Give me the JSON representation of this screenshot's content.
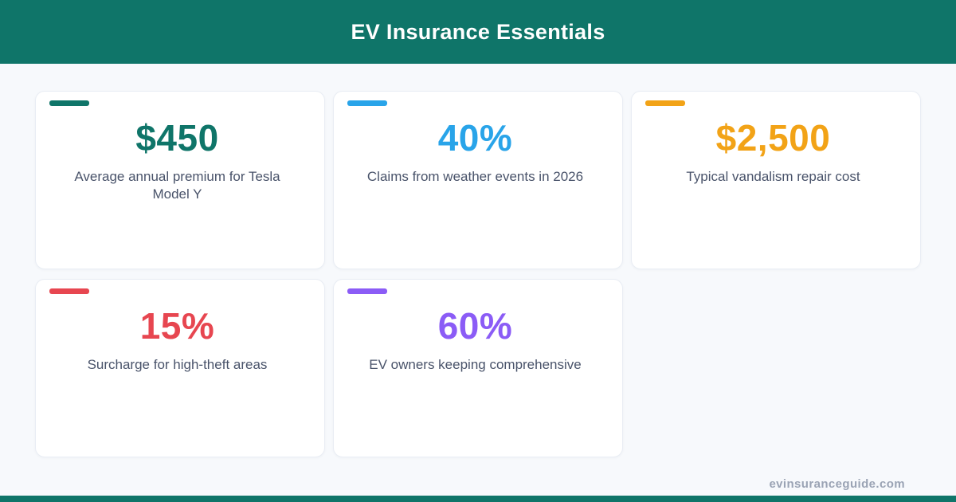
{
  "header": {
    "title": "EV Insurance Essentials"
  },
  "theme": {
    "header_bg": "#0f7569",
    "page_bg": "#f7f9fc",
    "label_color": "#49536a",
    "footer_color": "#9aa3b4"
  },
  "cards": [
    {
      "value": "$450",
      "label": "Average annual premium for Tesla Model Y",
      "color": "#0f7569"
    },
    {
      "value": "40%",
      "label": "Claims from weather events in 2026",
      "color": "#29a4e9"
    },
    {
      "value": "$2,500",
      "label": "Typical vandalism repair cost",
      "color": "#f2a317"
    },
    {
      "value": "15%",
      "label": "Surcharge for high-theft areas",
      "color": "#e74650"
    },
    {
      "value": "60%",
      "label": "EV owners keeping comprehensive",
      "color": "#8b5cf6"
    }
  ],
  "footer": {
    "website": "evinsuranceguide.com"
  },
  "chart_data": {
    "type": "table",
    "title": "EV Insurance Essentials",
    "categories": [
      "Average annual premium for Tesla Model Y",
      "Claims from weather events in 2026",
      "Typical vandalism repair cost",
      "Surcharge for high-theft areas",
      "EV owners keeping comprehensive"
    ],
    "values": [
      450,
      40,
      2500,
      15,
      60
    ],
    "display_values": [
      "$450",
      "40%",
      "$2,500",
      "15%",
      "60%"
    ],
    "units": [
      "USD",
      "%",
      "USD",
      "%",
      "%"
    ],
    "series_colors": [
      "#0f7569",
      "#29a4e9",
      "#f2a317",
      "#e74650",
      "#8b5cf6"
    ]
  }
}
